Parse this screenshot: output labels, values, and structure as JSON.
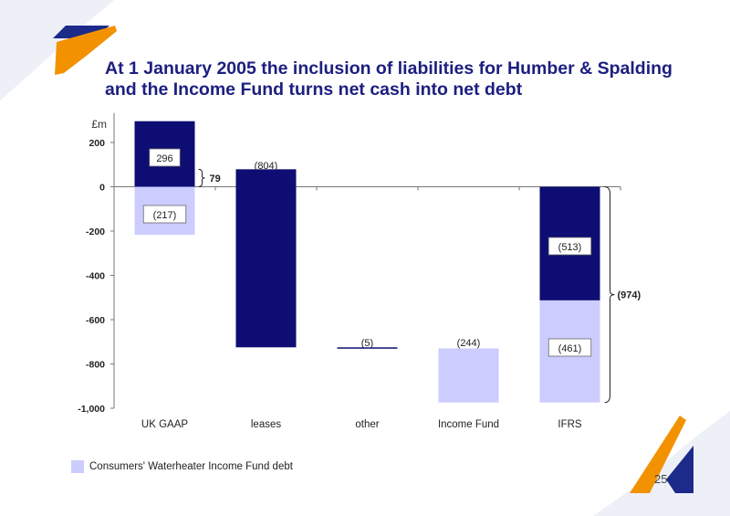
{
  "slide": {
    "title_line1": "At 1 January 2005 the inclusion of liabilities for Humber & Spalding",
    "title_line2": "and the Income Fund turns net cash into net debt",
    "page_number": "25"
  },
  "colors": {
    "dark": "#0d0d73",
    "light": "#ccccff",
    "title": "#1c1f7f",
    "accent": "#f39200"
  },
  "chart_data": {
    "type": "bar",
    "subtype": "waterfall",
    "unit": "£m",
    "ylim": [
      -1000,
      300
    ],
    "yticks": [
      200,
      0,
      -200,
      -400,
      -600,
      -800,
      -1000
    ],
    "ytick_labels": [
      "200",
      "0",
      "-200",
      "-400",
      "-600",
      "-800",
      "-1,000"
    ],
    "categories": [
      "UK GAAP",
      "leases",
      "other",
      "Income Fund",
      "IFRS"
    ],
    "segments": [
      {
        "category": "UK GAAP",
        "from": 0,
        "to": 296,
        "color": "dark",
        "label": "296"
      },
      {
        "category": "UK GAAP",
        "from": 0,
        "to": -217,
        "color": "light",
        "label": "(217)"
      },
      {
        "category": "leases",
        "from": 79,
        "to": -725,
        "color": "dark",
        "label": "(804)"
      },
      {
        "category": "other",
        "from": -725,
        "to": -730,
        "color": "dark",
        "label": "(5)"
      },
      {
        "category": "Income Fund",
        "from": -730,
        "to": -974,
        "color": "light",
        "label": "(244)"
      },
      {
        "category": "IFRS",
        "from": 0,
        "to": -513,
        "color": "dark",
        "label": "(513)"
      },
      {
        "category": "IFRS",
        "from": -513,
        "to": -974,
        "color": "light",
        "label": "(461)"
      }
    ],
    "annotations": [
      {
        "category": "UK GAAP",
        "value": 79,
        "label": "79"
      },
      {
        "category": "IFRS",
        "value": -974,
        "label": "(974)"
      }
    ],
    "legend": [
      {
        "label": "Consumers' Waterheater Income Fund debt",
        "color": "light"
      }
    ]
  }
}
